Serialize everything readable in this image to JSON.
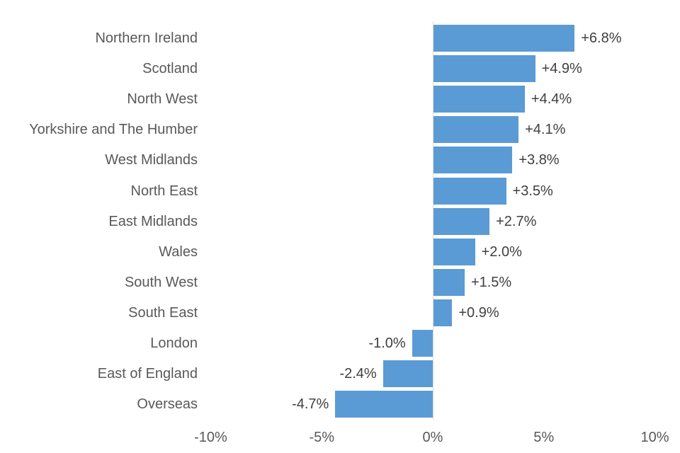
{
  "chart_data": {
    "type": "bar",
    "orientation": "horizontal",
    "title": "",
    "xlabel": "",
    "ylabel": "",
    "categories": [
      "Northern Ireland",
      "Scotland",
      "North West",
      "Yorkshire and The Humber",
      "West Midlands",
      "North East",
      "East Midlands",
      "Wales",
      "South West",
      "South East",
      "London",
      "East of England",
      "Overseas"
    ],
    "values": [
      6.8,
      4.9,
      4.4,
      4.1,
      3.8,
      3.5,
      2.7,
      2.0,
      1.5,
      0.9,
      -1.0,
      -2.4,
      -4.7
    ],
    "labels": [
      "+6.8%",
      "+4.9%",
      "+4.4%",
      "+4.1%",
      "+3.8%",
      "+3.5%",
      "+2.7%",
      "+2.0%",
      "+1.5%",
      "+0.9%",
      "-1.0%",
      "-2.4%",
      "-4.7%"
    ],
    "xlim": [
      -10,
      10
    ],
    "xticks": [
      "-10%",
      "-5%",
      "0%",
      "5%",
      "10%"
    ],
    "grid": false,
    "legend": null,
    "bar_color": "#5b9bd5"
  }
}
